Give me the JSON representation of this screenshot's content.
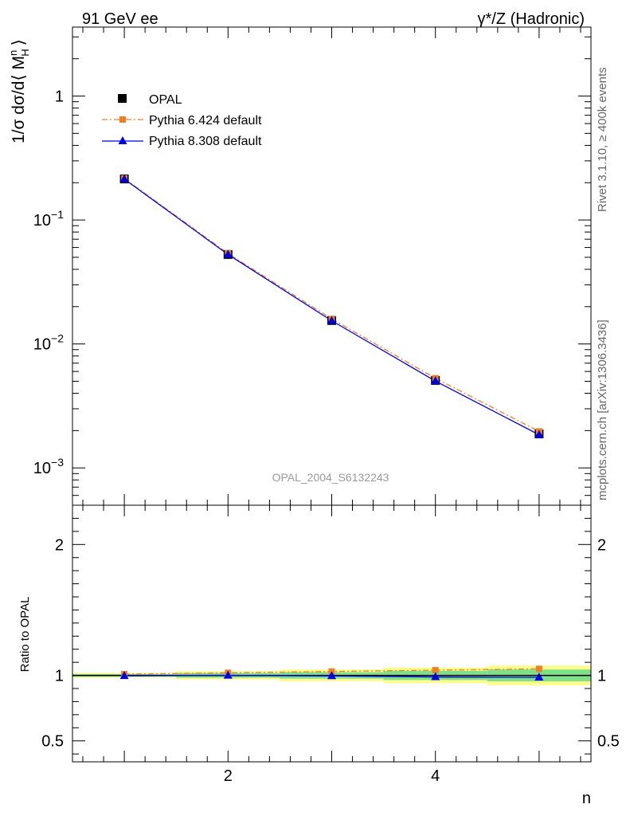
{
  "header": {
    "left_label": "91 GeV ee",
    "right_label": "γ*/Z (Hadronic)"
  },
  "side_labels": {
    "rivet": "Rivet 3.1.10, ≥ 400k events",
    "mcplots": "mcplots.cern.ch [arXiv:1306.3436]"
  },
  "watermark": "OPAL_2004_S6132243",
  "x_axis_label": "n",
  "legend": {
    "opal": "OPAL",
    "py6": "Pythia 6.424 default",
    "py8": "Pythia 8.308 default"
  },
  "colors": {
    "opal": "#000000",
    "py6": "#f07f2a",
    "py8": "#0000e6",
    "band_inner": "#7fe08a",
    "band_outer": "#fdfd8c"
  },
  "chart_data": [
    {
      "type": "line",
      "panel": "main",
      "yscale": "log",
      "ylabel": "1/σ dσ/d⟨ M",
      "ylabel_sup": "n",
      "ylabel_sub": "H",
      "ylabel_end": "⟩",
      "xlim": [
        0.5,
        5.5
      ],
      "ylim": [
        0.0005,
        3.6
      ],
      "x_ticks": [
        2,
        4
      ],
      "y_ticks": [
        0.001,
        0.01,
        0.1,
        1
      ],
      "y_tick_labels": [
        {
          "base": "10",
          "exp": "−3"
        },
        {
          "base": "10",
          "exp": "−2"
        },
        {
          "base": "10",
          "exp": "−1"
        },
        {
          "base": "1",
          "exp": ""
        }
      ],
      "series": [
        {
          "name": "OPAL",
          "x": [
            1,
            2,
            3,
            4,
            5
          ],
          "values": [
            0.2143,
            0.0527,
            0.01545,
            0.00508,
            0.00188
          ]
        },
        {
          "name": "Pythia 6.424 default",
          "x": [
            1,
            2,
            3,
            4,
            5
          ],
          "values": [
            0.2162,
            0.0537,
            0.01593,
            0.00529,
            0.00197
          ]
        },
        {
          "name": "Pythia 8.308 default",
          "x": [
            1,
            2,
            3,
            4,
            5
          ],
          "values": [
            0.2137,
            0.0527,
            0.01539,
            0.00502,
            0.00185
          ]
        }
      ]
    },
    {
      "type": "line",
      "panel": "ratio",
      "ylabel": "Ratio to OPAL",
      "xlabel": "n",
      "xlim": [
        0.5,
        5.5
      ],
      "ylim": [
        0.34,
        2.3
      ],
      "x_ticks": [
        2,
        4
      ],
      "y_ticks": [
        0.5,
        1,
        2
      ],
      "y_tick_labels": [
        "0.5",
        "1",
        "2"
      ],
      "band_inner": [
        0.01,
        0.018,
        0.025,
        0.035,
        0.045
      ],
      "band_outer": [
        0.018,
        0.032,
        0.045,
        0.06,
        0.075
      ],
      "series": [
        {
          "name": "Pythia 6.424 default",
          "x": [
            1,
            2,
            3,
            4,
            5
          ],
          "values": [
            1.01,
            1.02,
            1.03,
            1.04,
            1.05
          ]
        },
        {
          "name": "Pythia 8.308 default",
          "x": [
            1,
            2,
            3,
            4,
            5
          ],
          "values": [
            0.997,
            1.0,
            0.996,
            0.988,
            0.985
          ]
        }
      ]
    }
  ]
}
